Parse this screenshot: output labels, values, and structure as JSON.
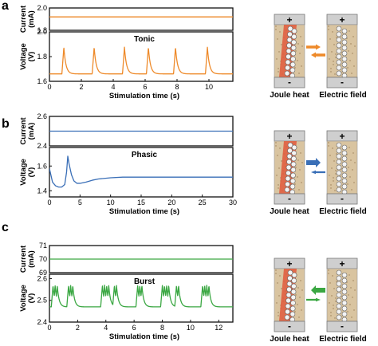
{
  "colors": {
    "tonic": "#ee8a2a",
    "phasic": "#3a6fb7",
    "burst": "#3aa742",
    "heat": "#e05a3c"
  },
  "panels": [
    {
      "label": "a",
      "joule_label": "Joule heat",
      "field_label": "Electric field",
      "diagram_plus": "+",
      "diagram_minus": "-",
      "arrows": "equal"
    },
    {
      "label": "b",
      "joule_label": "Joule heat",
      "field_label": "Electric field",
      "diagram_plus": "+",
      "diagram_minus": "-",
      "arrows": "field-dominant"
    },
    {
      "label": "c",
      "joule_label": "Joule heat",
      "field_label": "Electric field",
      "diagram_plus": "+",
      "diagram_minus": "-",
      "arrows": "heat-dominant"
    }
  ],
  "chart_data": [
    {
      "type": "line",
      "name": "a-current",
      "ylabel": "Current (mA)",
      "xlim": [
        0,
        11.5
      ],
      "ylim": [
        1.8,
        2.0
      ],
      "yticks": [
        "1.8",
        "2.0"
      ],
      "x": [
        0,
        11.5
      ],
      "y": [
        1.92,
        1.92
      ],
      "color": "#ee8a2a"
    },
    {
      "type": "line",
      "name": "a-voltage",
      "title": "Tonic",
      "xlabel": "Stimulation time (s)",
      "ylabel": "Voltage (V)",
      "xlim": [
        0,
        11.5
      ],
      "ylim": [
        1.6,
        2.0
      ],
      "xticks": [
        "0",
        "2",
        "4",
        "6",
        "8",
        "10"
      ],
      "yticks": [
        "1.6",
        "1.8",
        "2.0"
      ],
      "baseline": 1.66,
      "spike_times": [
        0.9,
        2.8,
        4.7,
        6.2,
        7.9,
        9.9
      ],
      "spike_peak": 1.88,
      "color": "#ee8a2a"
    },
    {
      "type": "line",
      "name": "b-current",
      "ylabel": "Current (mA)",
      "xlim": [
        0,
        30
      ],
      "ylim": [
        2.4,
        2.6
      ],
      "yticks": [
        "2.4",
        "2.6"
      ],
      "x": [
        0,
        30
      ],
      "y": [
        2.5,
        2.5
      ],
      "color": "#3a6fb7"
    },
    {
      "type": "line",
      "name": "b-voltage",
      "title": "Phasic",
      "xlabel": "Stimulation time (s)",
      "ylabel": "Voltage (V)",
      "xlim": [
        0,
        30
      ],
      "ylim": [
        1.35,
        1.75
      ],
      "xticks": [
        "0",
        "5",
        "10",
        "15",
        "20",
        "25",
        "30"
      ],
      "yticks": [
        "1.4",
        "1.6"
      ],
      "x": [
        0,
        0.5,
        1.0,
        1.5,
        2.0,
        2.5,
        2.8,
        3.0,
        3.2,
        3.6,
        4.0,
        4.5,
        5.0,
        6.0,
        7.0,
        8.0,
        9.0,
        10.0,
        12.0,
        15.0,
        20.0,
        25.0,
        30.0
      ],
      "y": [
        1.58,
        1.47,
        1.44,
        1.43,
        1.43,
        1.45,
        1.55,
        1.68,
        1.62,
        1.53,
        1.48,
        1.46,
        1.46,
        1.47,
        1.485,
        1.495,
        1.5,
        1.505,
        1.51,
        1.51,
        1.51,
        1.51,
        1.51
      ],
      "color": "#3a6fb7"
    },
    {
      "type": "line",
      "name": "c-current",
      "ylabel": "Current (mA)",
      "xlim": [
        0,
        13
      ],
      "ylim": [
        69,
        71
      ],
      "yticks": [
        "69",
        "70",
        "71"
      ],
      "x": [
        0,
        13
      ],
      "y": [
        70,
        70
      ],
      "color": "#3aa742"
    },
    {
      "type": "line",
      "name": "c-voltage",
      "title": "Burst",
      "xlabel": "Stimulation time (s)",
      "ylabel": "Voltage (V)",
      "xlim": [
        0,
        13
      ],
      "ylim": [
        2.4,
        2.62
      ],
      "xticks": [
        "0",
        "2",
        "4",
        "6",
        "8",
        "10",
        "12"
      ],
      "yticks": [
        "2.4",
        "2.5",
        "2.6"
      ],
      "baseline": 2.47,
      "spike_times": [
        0.25,
        0.4,
        0.55,
        1.35,
        1.5,
        1.65,
        3.75,
        3.9,
        4.05,
        4.2,
        4.6,
        4.75,
        6.25,
        6.4,
        6.55,
        8.0,
        8.15,
        8.3,
        8.45,
        9.0,
        9.15,
        10.85,
        11.0,
        11.15,
        11.3
      ],
      "spike_peak": 2.57,
      "color": "#3aa742"
    }
  ]
}
